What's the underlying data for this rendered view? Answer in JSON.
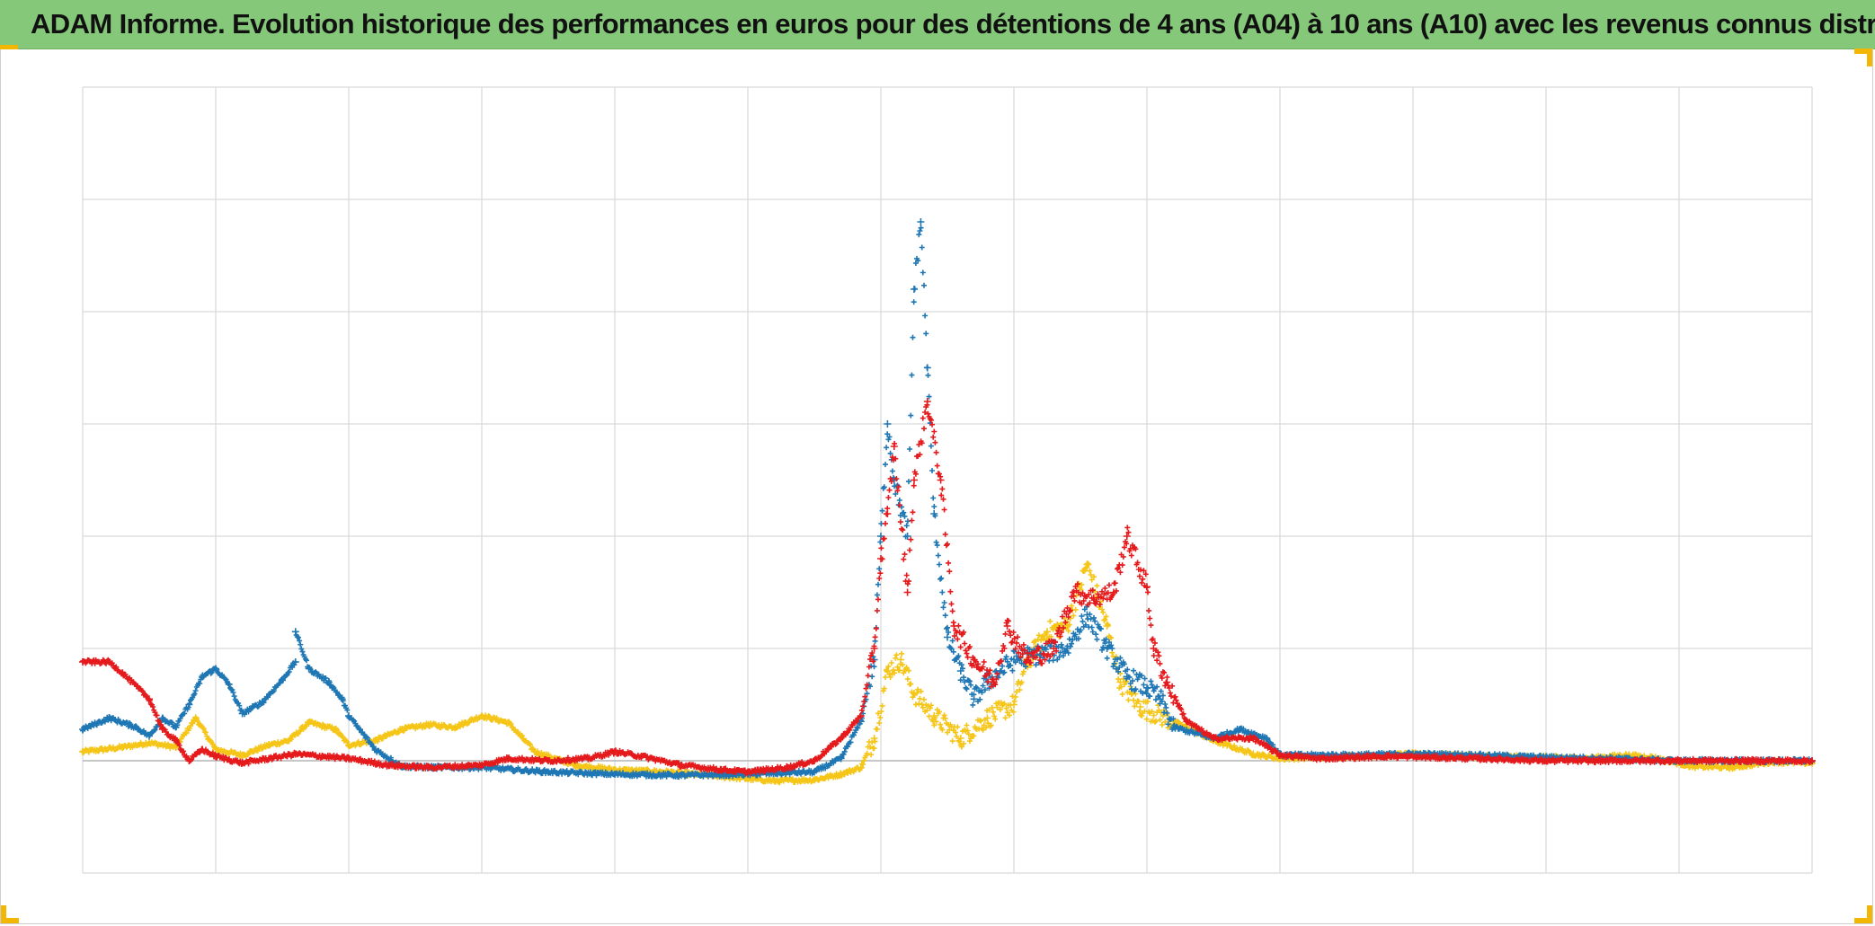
{
  "title": "ADAM Informe. Evolution historique des performances en euros pour des détentions de 4 ans (A04) à 10 ans (A10) avec les revenus connus distribués",
  "colors": {
    "header_bg": "#86c87a",
    "corner_accent": "#f2b705",
    "grid": "#d9d9d9",
    "zero_line": "#bfbfbf"
  },
  "chart_data": {
    "type": "scatter",
    "marker": "cross",
    "title": "",
    "xlabel": "",
    "ylabel": "",
    "xlim": [
      0,
      13
    ],
    "ylim": [
      -1,
      6
    ],
    "grid": true,
    "legend": "none",
    "x_ticks": [
      0,
      1,
      2,
      3,
      4,
      5,
      6,
      7,
      8,
      9,
      10,
      11,
      12,
      13
    ],
    "y_ticks": [
      -1,
      0,
      1,
      2,
      3,
      4,
      5,
      6
    ],
    "series": [
      {
        "color": "#f5c518",
        "points": [
          [
            0,
            0.08
          ],
          [
            0.3,
            0.12
          ],
          [
            0.5,
            0.16
          ],
          [
            0.7,
            0.12
          ],
          [
            0.85,
            0.38
          ],
          [
            1.0,
            0.1
          ],
          [
            1.2,
            0.05
          ],
          [
            1.4,
            0.14
          ],
          [
            1.55,
            0.18
          ],
          [
            1.7,
            0.34
          ],
          [
            1.9,
            0.28
          ],
          [
            2.0,
            0.14
          ],
          [
            2.2,
            0.18
          ],
          [
            2.4,
            0.28
          ],
          [
            2.6,
            0.32
          ],
          [
            2.8,
            0.3
          ],
          [
            3.0,
            0.4
          ],
          [
            3.2,
            0.34
          ],
          [
            3.4,
            0.08
          ],
          [
            3.7,
            -0.04
          ],
          [
            4.0,
            -0.08
          ],
          [
            4.4,
            -0.1
          ],
          [
            4.8,
            -0.14
          ],
          [
            5.2,
            -0.18
          ],
          [
            5.5,
            -0.17
          ],
          [
            5.7,
            -0.12
          ],
          [
            5.85,
            -0.06
          ],
          [
            5.95,
            0.2
          ],
          [
            6.05,
            0.8
          ],
          [
            6.15,
            0.9
          ],
          [
            6.25,
            0.6
          ],
          [
            6.4,
            0.4
          ],
          [
            6.6,
            0.2
          ],
          [
            6.8,
            0.38
          ],
          [
            7.0,
            0.5
          ],
          [
            7.1,
            0.88
          ],
          [
            7.25,
            1.15
          ],
          [
            7.4,
            1.2
          ],
          [
            7.55,
            1.75
          ],
          [
            7.7,
            1.2
          ],
          [
            7.8,
            0.7
          ],
          [
            7.95,
            0.48
          ],
          [
            8.2,
            0.35
          ],
          [
            8.5,
            0.18
          ],
          [
            8.8,
            0.06
          ],
          [
            9.0,
            0.02
          ],
          [
            9.5,
            0.04
          ],
          [
            10.0,
            0.06
          ],
          [
            10.5,
            0.04
          ],
          [
            11.0,
            0.03
          ],
          [
            11.3,
            0.02
          ],
          [
            11.6,
            0.05
          ],
          [
            11.8,
            0.03
          ],
          [
            12.1,
            -0.05
          ],
          [
            12.4,
            -0.06
          ],
          [
            12.7,
            -0.01
          ],
          [
            13.0,
            -0.02
          ]
        ]
      },
      {
        "color": "#1f77b4",
        "points": [
          [
            0,
            0.28
          ],
          [
            0.2,
            0.38
          ],
          [
            0.4,
            0.3
          ],
          [
            0.5,
            0.22
          ],
          [
            0.6,
            0.38
          ],
          [
            0.7,
            0.3
          ],
          [
            0.8,
            0.5
          ],
          [
            0.9,
            0.75
          ],
          [
            1.0,
            0.82
          ],
          [
            1.1,
            0.68
          ],
          [
            1.2,
            0.42
          ],
          [
            1.35,
            0.52
          ],
          [
            1.5,
            0.72
          ],
          [
            1.6,
            0.88
          ],
          [
            1.6,
            1.15
          ],
          [
            1.7,
            0.82
          ],
          [
            1.85,
            0.7
          ],
          [
            1.95,
            0.55
          ],
          [
            2.0,
            0.4
          ],
          [
            2.2,
            0.1
          ],
          [
            2.4,
            -0.05
          ],
          [
            2.7,
            -0.06
          ],
          [
            3.0,
            -0.06
          ],
          [
            3.5,
            -0.1
          ],
          [
            4.0,
            -0.12
          ],
          [
            4.5,
            -0.13
          ],
          [
            5.0,
            -0.12
          ],
          [
            5.5,
            -0.1
          ],
          [
            5.7,
            0.02
          ],
          [
            5.85,
            0.35
          ],
          [
            5.95,
            0.9
          ],
          [
            6.0,
            2.0
          ],
          [
            6.05,
            3.0
          ],
          [
            6.1,
            2.5
          ],
          [
            6.2,
            2.0
          ],
          [
            6.25,
            4.2
          ],
          [
            6.3,
            4.8
          ],
          [
            6.35,
            3.5
          ],
          [
            6.4,
            2.2
          ],
          [
            6.5,
            1.1
          ],
          [
            6.6,
            0.8
          ],
          [
            6.7,
            0.55
          ],
          [
            6.8,
            0.7
          ],
          [
            7.0,
            0.9
          ],
          [
            7.2,
            0.95
          ],
          [
            7.4,
            1.0
          ],
          [
            7.55,
            1.3
          ],
          [
            7.7,
            1.0
          ],
          [
            7.85,
            0.75
          ],
          [
            8.0,
            0.65
          ],
          [
            8.1,
            0.55
          ],
          [
            8.2,
            0.3
          ],
          [
            8.5,
            0.2
          ],
          [
            8.7,
            0.28
          ],
          [
            8.9,
            0.2
          ],
          [
            9.0,
            0.05
          ],
          [
            9.5,
            0.05
          ],
          [
            10.0,
            0.06
          ],
          [
            10.5,
            0.05
          ],
          [
            11.0,
            0.03
          ],
          [
            11.5,
            0.02
          ],
          [
            12.0,
            0.0
          ],
          [
            12.5,
            0.0
          ],
          [
            13.0,
            0.0
          ]
        ]
      },
      {
        "color": "#e41a1c",
        "points": [
          [
            0,
            0.88
          ],
          [
            0.2,
            0.88
          ],
          [
            0.3,
            0.78
          ],
          [
            0.5,
            0.55
          ],
          [
            0.6,
            0.28
          ],
          [
            0.7,
            0.18
          ],
          [
            0.8,
            0.0
          ],
          [
            0.9,
            0.1
          ],
          [
            1.0,
            0.04
          ],
          [
            1.2,
            -0.02
          ],
          [
            1.4,
            0.02
          ],
          [
            1.6,
            0.06
          ],
          [
            1.8,
            0.04
          ],
          [
            2.0,
            0.02
          ],
          [
            2.3,
            -0.04
          ],
          [
            2.6,
            -0.06
          ],
          [
            3.0,
            -0.04
          ],
          [
            3.2,
            0.02
          ],
          [
            3.5,
            0.0
          ],
          [
            3.8,
            0.02
          ],
          [
            4.0,
            0.08
          ],
          [
            4.2,
            0.04
          ],
          [
            4.5,
            -0.04
          ],
          [
            4.8,
            -0.08
          ],
          [
            5.0,
            -0.1
          ],
          [
            5.3,
            -0.06
          ],
          [
            5.5,
            0.0
          ],
          [
            5.7,
            0.2
          ],
          [
            5.85,
            0.4
          ],
          [
            5.95,
            1.0
          ],
          [
            6.0,
            1.8
          ],
          [
            6.05,
            2.2
          ],
          [
            6.1,
            2.8
          ],
          [
            6.2,
            1.5
          ],
          [
            6.25,
            2.5
          ],
          [
            6.35,
            3.2
          ],
          [
            6.45,
            2.5
          ],
          [
            6.55,
            1.2
          ],
          [
            6.7,
            0.9
          ],
          [
            6.85,
            0.7
          ],
          [
            6.95,
            1.2
          ],
          [
            7.1,
            0.9
          ],
          [
            7.3,
            1.0
          ],
          [
            7.45,
            1.5
          ],
          [
            7.6,
            1.45
          ],
          [
            7.75,
            1.5
          ],
          [
            7.85,
            2.0
          ],
          [
            8.0,
            1.55
          ],
          [
            8.05,
            1.0
          ],
          [
            8.15,
            0.7
          ],
          [
            8.3,
            0.35
          ],
          [
            8.5,
            0.2
          ],
          [
            8.8,
            0.2
          ],
          [
            9.0,
            0.05
          ],
          [
            9.3,
            0.02
          ],
          [
            9.8,
            0.04
          ],
          [
            10.5,
            0.02
          ],
          [
            11.0,
            0.0
          ],
          [
            11.5,
            0.0
          ],
          [
            12.0,
            0.0
          ],
          [
            12.5,
            0.0
          ],
          [
            13.0,
            0.0
          ]
        ]
      }
    ]
  }
}
